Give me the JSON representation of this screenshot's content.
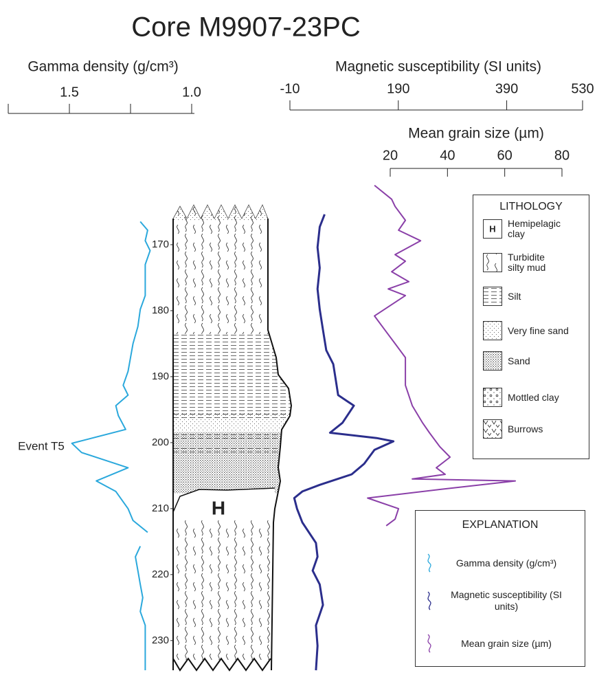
{
  "chart_data": {
    "type": "line",
    "title": "Core M9907-23PC",
    "ylim": [
      160,
      234.5
    ],
    "y_inverted": true,
    "yticks": [
      170,
      180,
      190,
      200,
      210,
      220,
      230
    ],
    "annotations": [
      "Event T5",
      "H"
    ],
    "series": [
      {
        "name": "Gamma density (g/cm³)",
        "color": "#2aa8dc",
        "xlim": [
          1.75,
          1.0
        ],
        "xticks": [
          {
            "value": 1.75,
            "label": null
          },
          1.5,
          {
            "value": 1.25,
            "label": null
          },
          {
            "value": 1.0,
            "label": "1.0"
          }
        ],
        "depth": [
          166.5,
          167.8,
          169.4,
          170.9,
          173.0,
          174.6,
          177.7,
          179.8,
          182.4,
          185.0,
          187.1,
          189.2,
          191.3,
          192.8,
          194.4,
          195.9,
          198.0,
          200.1,
          201.5,
          203.8,
          205.8,
          207.4,
          210.0,
          211.8,
          213.6,
          214.6,
          215.7,
          217.3,
          219.4,
          221.5,
          223.5,
          225.6,
          227.7,
          229.8,
          234.5
        ],
        "values": [
          1.21,
          1.18,
          1.19,
          1.17,
          1.19,
          1.19,
          1.19,
          1.21,
          1.22,
          1.24,
          1.25,
          1.26,
          1.28,
          1.26,
          1.31,
          1.3,
          1.27,
          1.49,
          1.45,
          1.26,
          1.39,
          1.31,
          1.26,
          1.24,
          1.18,
          null,
          1.21,
          1.23,
          1.22,
          1.21,
          1.2,
          1.21,
          1.19,
          1.19,
          1.19
        ]
      },
      {
        "name": "Magnetic susceptibility (SI units)",
        "color": "#2b2e8c",
        "xlim": [
          -10,
          530
        ],
        "xticks": [
          -10,
          190,
          390,
          530
        ],
        "depth": [
          165.4,
          167.3,
          170.4,
          173.5,
          176.7,
          179.8,
          182.9,
          186.0,
          188.1,
          190.2,
          192.8,
          194.4,
          197.0,
          198.5,
          199.3,
          199.8,
          201.1,
          203.2,
          204.8,
          206.4,
          207.4,
          208.4,
          210.0,
          212.1,
          215.2,
          217.3,
          219.4,
          221.5,
          224.6,
          227.7,
          230.8,
          234.5
        ],
        "values": [
          54,
          45,
          41,
          45,
          41,
          45,
          51,
          57,
          70,
          74,
          79,
          108,
          87,
          64,
          150,
          181,
          146,
          127,
          104,
          45,
          13,
          -2,
          3,
          13,
          38,
          41,
          32,
          45,
          51,
          38,
          41,
          38
        ]
      },
      {
        "name": "Mean grain size (µm)",
        "color": "#8a3fa8",
        "xlim": [
          20,
          80
        ],
        "xticks": [
          20,
          40,
          60,
          80
        ],
        "depth": [
          161.0,
          163.1,
          164.2,
          166.3,
          167.8,
          169.4,
          171.5,
          172.5,
          174.1,
          175.6,
          176.7,
          177.7,
          180.8,
          182.9,
          185.0,
          187.1,
          191.3,
          194.4,
          197.0,
          198.5,
          200.6,
          202.2,
          203.8,
          204.8,
          205.5,
          205.8,
          207.1,
          208.4,
          210.0,
          211.6,
          212.6
        ],
        "values": [
          14.5,
          20.5,
          21.7,
          25.3,
          22.9,
          30.6,
          21.7,
          25.3,
          20.5,
          26.5,
          19.3,
          25.3,
          14.5,
          18.1,
          21.7,
          25.3,
          25.3,
          27.7,
          31.3,
          33.7,
          37.3,
          40.9,
          36.1,
          39.2,
          27.7,
          63.7,
          37.3,
          12.1,
          22.9,
          21.7,
          18.6
        ]
      }
    ],
    "lithology": {
      "title": "LITHOLOGY",
      "items": [
        {
          "label": "Hemipelagic clay",
          "symbol": "H"
        },
        {
          "label": "Turbidite silty mud"
        },
        {
          "label": "Silt"
        },
        {
          "label": "Very fine sand"
        },
        {
          "label": "Sand"
        },
        {
          "label": "Mottled clay"
        },
        {
          "label": "Burrows"
        }
      ]
    },
    "explanation_title": "EXPLANATION"
  }
}
